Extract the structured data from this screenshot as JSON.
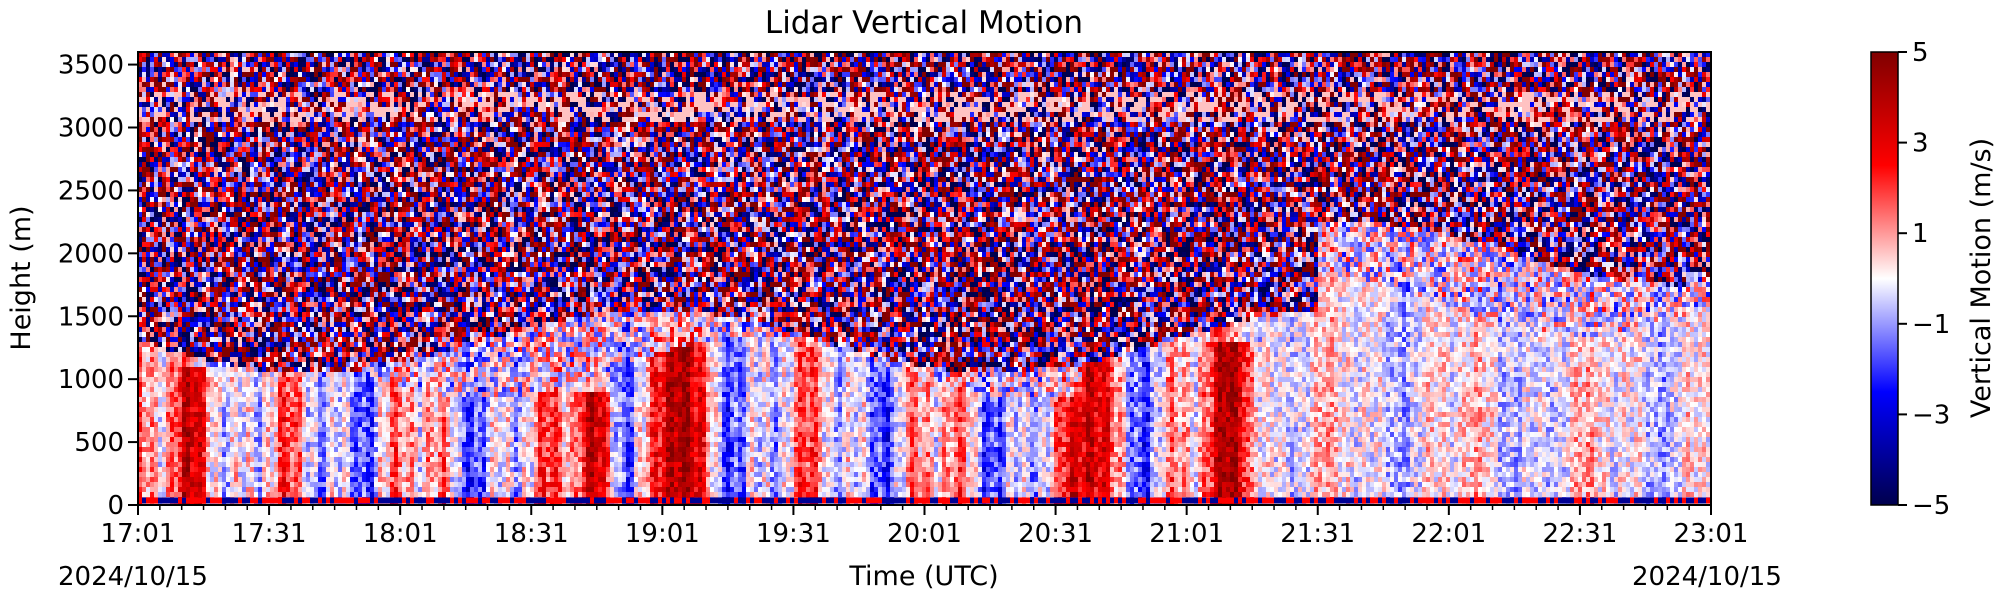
{
  "chart_data": {
    "type": "heatmap",
    "title": "Lidar Vertical Motion",
    "xlabel": "Time (UTC)",
    "ylabel": "Height (m)",
    "x_ticks": [
      "17:01",
      "17:31",
      "18:01",
      "18:31",
      "19:01",
      "19:31",
      "20:01",
      "20:31",
      "21:01",
      "21:31",
      "22:01",
      "22:31",
      "23:01"
    ],
    "x_range": [
      "17:01",
      "23:01"
    ],
    "date_left": "2024/10/15",
    "date_right": "2024/10/15",
    "y_ticks": [
      0,
      500,
      1000,
      1500,
      2000,
      2500,
      3000,
      3500
    ],
    "ylim": [
      0,
      3600
    ],
    "colorbar": {
      "label": "Vertical Motion (m/s)",
      "ticks": [
        "5",
        "3",
        "1",
        "−1",
        "−3",
        "−5"
      ],
      "range": [
        -5,
        5
      ],
      "colormap": "seismic",
      "colors": [
        "#00004d",
        "#0000ff",
        "#ffffff",
        "#ff0000",
        "#800000"
      ]
    },
    "grid": false,
    "features": [
      {
        "description": "strong updraft",
        "time": "17:15",
        "height_range": [
          0,
          1100
        ],
        "vertical_motion": 3
      },
      {
        "description": "strong updraft",
        "time": "18:45",
        "height_range": [
          0,
          900
        ],
        "vertical_motion": 3
      },
      {
        "description": "strong updraft",
        "time": "19:05",
        "height_range": [
          0,
          1400
        ],
        "vertical_motion": 3
      },
      {
        "description": "strong updraft",
        "time": "20:40",
        "height_range": [
          0,
          1500
        ],
        "vertical_motion": 3
      },
      {
        "description": "strong updraft",
        "time": "21:12",
        "height_range": [
          0,
          1300
        ],
        "vertical_motion": 3
      },
      {
        "description": "noisy signal region",
        "time_range": [
          "17:01",
          "23:01"
        ],
        "height_range": [
          1300,
          3600
        ],
        "vertical_motion": 0
      }
    ]
  }
}
